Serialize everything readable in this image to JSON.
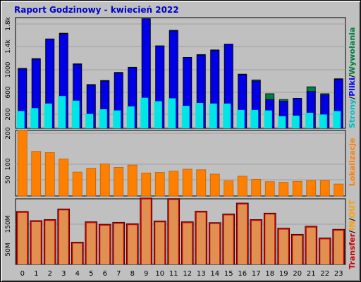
{
  "title": "Raport Godzinowy -  kwiecień 2022",
  "colors": {
    "background": "#c0c0c0",
    "plot": "#c0c0c0",
    "hits": "#008040",
    "files": "#0000e6",
    "pages": "#00e6e6",
    "visits": "#ff8000",
    "kbytes": "#e09050",
    "kbytes_edge": "#cc0000"
  },
  "legend_right": {
    "panel1": [
      {
        "text": "Strony",
        "color": "#00c0c0"
      },
      {
        "text": "/",
        "color": "#000000"
      },
      {
        "text": "Pliki",
        "color": "#0000ff"
      },
      {
        "text": "/",
        "color": "#000000"
      },
      {
        "text": "Wywołania",
        "color": "#008040"
      }
    ],
    "panel2": [
      {
        "text": "Lokalizacje",
        "color": "#ff8000"
      }
    ],
    "panel3": [
      {
        "text": "Transfer",
        "color": "#cc0000"
      },
      {
        "text": "/",
        "color": "#000000"
      },
      {
        "text": "IN",
        "color": "#ffa000"
      },
      {
        "text": "/",
        "color": "#000000"
      },
      {
        "text": "OUT",
        "color": "#ffa000"
      }
    ]
  },
  "chart_data": [
    {
      "type": "bar",
      "name": "panel1",
      "categories": [
        "0",
        "1",
        "2",
        "3",
        "4",
        "5",
        "6",
        "7",
        "8",
        "9",
        "10",
        "11",
        "12",
        "13",
        "14",
        "15",
        "16",
        "17",
        "18",
        "19",
        "20",
        "21",
        "22",
        "23"
      ],
      "yticks": [
        "200",
        "600",
        "1000",
        "1.4k",
        "1.8k"
      ],
      "ylim": [
        0,
        1920
      ],
      "series": [
        {
          "name": "Wywołania",
          "values": [
            1040,
            1210,
            1550,
            1650,
            1120,
            760,
            830,
            970,
            1060,
            1900,
            1430,
            1700,
            1230,
            1280,
            1360,
            1460,
            940,
            840,
            600,
            500,
            520,
            720,
            600,
            860
          ]
        },
        {
          "name": "Pliki",
          "values": [
            1030,
            1200,
            1550,
            1640,
            1110,
            750,
            820,
            960,
            1050,
            1900,
            1430,
            1690,
            1230,
            1270,
            1350,
            1460,
            930,
            820,
            500,
            470,
            520,
            640,
            580,
            850
          ]
        },
        {
          "name": "Strony",
          "values": [
            300,
            350,
            430,
            560,
            480,
            250,
            330,
            310,
            380,
            530,
            470,
            520,
            390,
            440,
            430,
            430,
            320,
            320,
            310,
            210,
            220,
            270,
            240,
            300
          ]
        }
      ]
    },
    {
      "type": "bar",
      "name": "panel2",
      "categories": [
        "0",
        "1",
        "2",
        "3",
        "4",
        "5",
        "6",
        "7",
        "8",
        "9",
        "10",
        "11",
        "12",
        "13",
        "14",
        "15",
        "16",
        "17",
        "18",
        "19",
        "20",
        "21",
        "22",
        "23"
      ],
      "yticks": [
        "50",
        "100",
        "200"
      ],
      "ylim": [
        0,
        225
      ],
      "series": [
        {
          "name": "Lokalizacje",
          "values": [
            225,
            153,
            149,
            127,
            82,
            95,
            110,
            98,
            106,
            79,
            81,
            85,
            92,
            90,
            75,
            52,
            68,
            57,
            49,
            47,
            50,
            53,
            53,
            41
          ]
        }
      ]
    },
    {
      "type": "bar",
      "name": "panel3",
      "categories": [
        "0",
        "1",
        "2",
        "3",
        "4",
        "5",
        "6",
        "7",
        "8",
        "9",
        "10",
        "11",
        "12",
        "13",
        "14",
        "15",
        "16",
        "17",
        "18",
        "19",
        "20",
        "21",
        "22",
        "23"
      ],
      "yticks": [
        "50M",
        "150M"
      ],
      "ylim": [
        0,
        235
      ],
      "series": [
        {
          "name": "Transfer",
          "values": [
            190,
            157,
            161,
            199,
            80,
            153,
            144,
            151,
            146,
            238,
            156,
            236,
            153,
            191,
            150,
            181,
            220,
            161,
            184,
            130,
            108,
            137,
            95,
            126
          ]
        }
      ]
    }
  ],
  "xticks": [
    "0",
    "1",
    "2",
    "3",
    "4",
    "5",
    "6",
    "7",
    "8",
    "9",
    "10",
    "11",
    "12",
    "13",
    "14",
    "15",
    "16",
    "17",
    "18",
    "19",
    "20",
    "21",
    "22",
    "23"
  ]
}
